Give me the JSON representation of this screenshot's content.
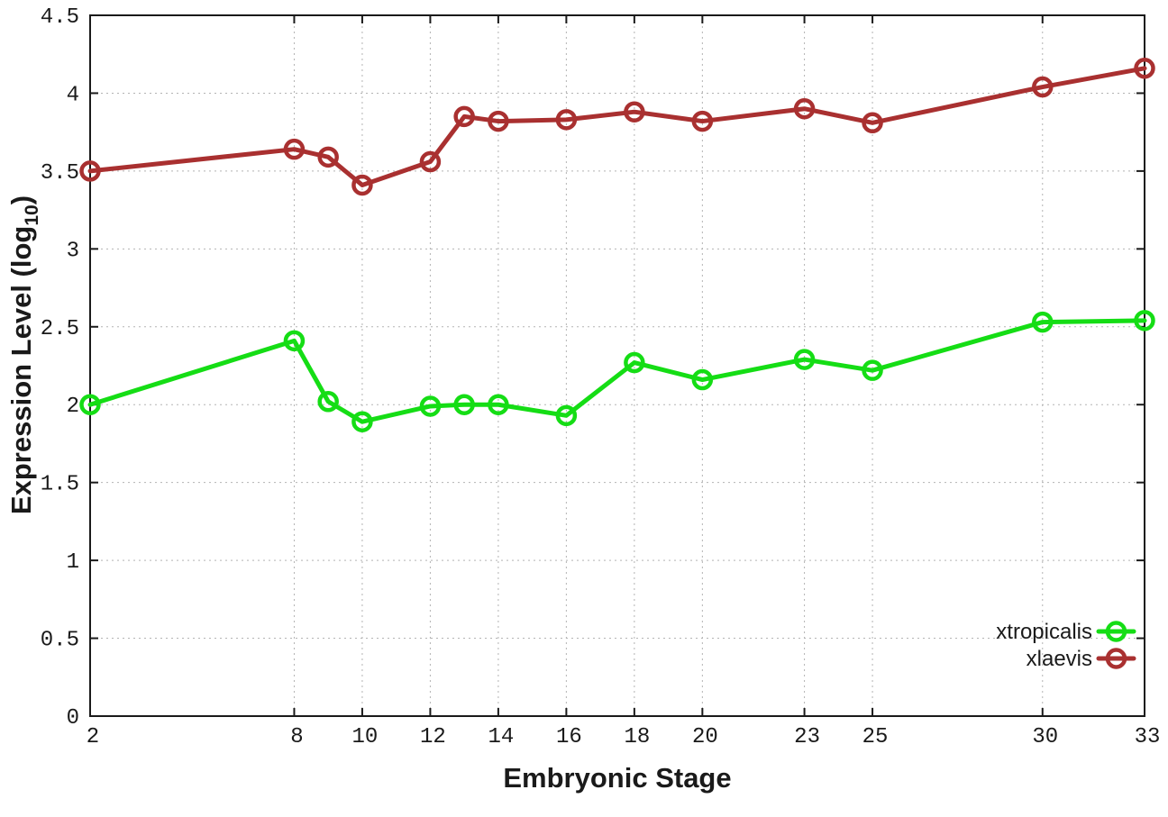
{
  "chart_data": {
    "type": "line",
    "title": "",
    "xlabel": "Embryonic Stage",
    "ylabel_parts": {
      "base": "Expression Level (log",
      "sub": "10",
      "close": ")"
    },
    "grid": true,
    "legend_position": "inside-bottom-right",
    "xlim": [
      2,
      33
    ],
    "ylim": [
      0,
      4.5
    ],
    "x": [
      2,
      8,
      9,
      10,
      12,
      13,
      14,
      16,
      18,
      20,
      23,
      25,
      30,
      33
    ],
    "xticks": [
      {
        "value": 2,
        "label": "2"
      },
      {
        "value": 8,
        "label": "8"
      },
      {
        "value": 10,
        "label": "10"
      },
      {
        "value": 12,
        "label": "12"
      },
      {
        "value": 14,
        "label": "14"
      },
      {
        "value": 16,
        "label": "16"
      },
      {
        "value": 18,
        "label": "18"
      },
      {
        "value": 20,
        "label": "20"
      },
      {
        "value": 23,
        "label": "23"
      },
      {
        "value": 25,
        "label": "25"
      },
      {
        "value": 30,
        "label": "30"
      },
      {
        "value": 33,
        "label": "33"
      }
    ],
    "yticks": [
      {
        "value": 0,
        "label": "0"
      },
      {
        "value": 0.5,
        "label": "0.5"
      },
      {
        "value": 1,
        "label": "1"
      },
      {
        "value": 1.5,
        "label": "1.5"
      },
      {
        "value": 2,
        "label": "2"
      },
      {
        "value": 2.5,
        "label": "2.5"
      },
      {
        "value": 3,
        "label": "3"
      },
      {
        "value": 3.5,
        "label": "3.5"
      },
      {
        "value": 4,
        "label": "4"
      },
      {
        "value": 4.5,
        "label": "4.5"
      }
    ],
    "series": [
      {
        "name": "xtropicalis",
        "color": "#15dd15",
        "values": [
          2.0,
          2.41,
          2.02,
          1.89,
          1.99,
          2.0,
          2.0,
          1.93,
          2.27,
          2.16,
          2.29,
          2.22,
          2.53,
          2.54
        ]
      },
      {
        "name": "xlaevis",
        "color": "#a93030",
        "values": [
          3.5,
          3.64,
          3.59,
          3.41,
          3.56,
          3.85,
          3.82,
          3.83,
          3.88,
          3.82,
          3.9,
          3.81,
          4.04,
          4.16
        ]
      }
    ],
    "colors": {
      "axis": "#1a1a1a",
      "grid": "#b3b3b3",
      "background": "#ffffff"
    }
  }
}
